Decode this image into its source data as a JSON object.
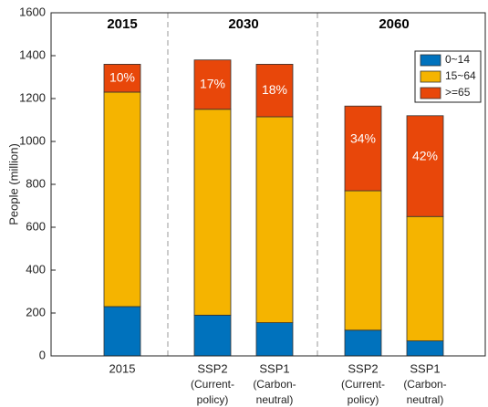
{
  "chart_data": {
    "type": "stacked_bar",
    "ylabel": "People (million)",
    "categories": [
      [
        "2015"
      ],
      [
        "SSP2",
        "(Current-",
        "policy)"
      ],
      [
        "SSP1",
        "(Carbon-",
        "neutral)"
      ],
      [
        "SSP2",
        "(Current-",
        "policy)"
      ],
      [
        "SSP1",
        "(Carbon-",
        "neutral)"
      ]
    ],
    "groups": [
      "2015",
      "2030",
      "2060"
    ],
    "series": [
      {
        "name": "0~14",
        "color": "#0072BD",
        "values": [
          230,
          190,
          155,
          120,
          70
        ]
      },
      {
        "name": "15~64",
        "color": "#F5B400",
        "values": [
          1000,
          960,
          960,
          650,
          580
        ]
      },
      {
        "name": ">=65",
        "color": "#E8470A",
        "values": [
          130,
          230,
          245,
          395,
          470
        ],
        "share_labels": [
          "10%",
          "17%",
          "18%",
          "34%",
          "42%"
        ]
      }
    ],
    "ylim": [
      0,
      1600
    ],
    "yticks": [
      0,
      200,
      400,
      600,
      800,
      1000,
      1200,
      1400,
      1600
    ],
    "legend": "upper right"
  }
}
